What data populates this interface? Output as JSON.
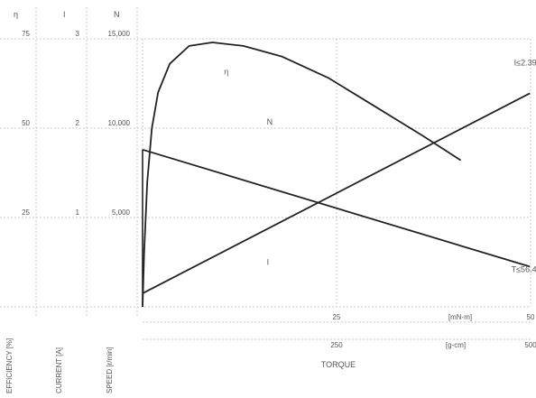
{
  "chart_data": {
    "type": "line",
    "xlabel": "TORQUE",
    "x_units": {
      "top": "[mN-m]",
      "bottom": "[g-cm]"
    },
    "x_ticks_top": [
      {
        "value": 0,
        "label": ""
      },
      {
        "value": 25,
        "label": "25"
      },
      {
        "value": 50,
        "label": "50"
      }
    ],
    "x_ticks_bottom": [
      {
        "value": 0,
        "label": ""
      },
      {
        "value": 25,
        "label": "250"
      },
      {
        "value": 50,
        "label": "500"
      }
    ],
    "xlim": [
      0,
      50
    ],
    "left_axes": [
      {
        "symbol": "η",
        "label": "EFFICIENCY [%]",
        "ticks": [
          "25",
          "50",
          "75"
        ]
      },
      {
        "symbol": "I",
        "label": "CURRENT [A]",
        "ticks": [
          "1",
          "2",
          "3"
        ]
      },
      {
        "symbol": "N",
        "label": "SPEED [r/min]",
        "ticks": [
          "5,000",
          "10,000",
          "15,000"
        ]
      }
    ],
    "ylim": [
      0,
      15000
    ],
    "grid": true,
    "series": [
      {
        "name": "η",
        "unit": "%",
        "stroke": "#222222",
        "points": [
          [
            0.0,
            0
          ],
          [
            0.2,
            15
          ],
          [
            0.6,
            35
          ],
          [
            1.2,
            50
          ],
          [
            2.0,
            60
          ],
          [
            3.5,
            68
          ],
          [
            6.0,
            73
          ],
          [
            9.0,
            74
          ],
          [
            13.0,
            73
          ],
          [
            18.0,
            70
          ],
          [
            24.0,
            64
          ],
          [
            30.0,
            56
          ],
          [
            36.0,
            48
          ],
          [
            41.0,
            41
          ]
        ]
      },
      {
        "name": "N",
        "unit": "r/min",
        "stroke": "#222222",
        "points": [
          [
            0,
            8800
          ],
          [
            49.9,
            2250
          ]
        ]
      },
      {
        "name": "I",
        "unit": "A",
        "stroke": "#222222",
        "points": [
          [
            0,
            0.15
          ],
          [
            49.9,
            2.39
          ]
        ]
      }
    ],
    "annotations": [
      {
        "text": "η",
        "x": 10.5,
        "y": 13000
      },
      {
        "text": "N",
        "x": 16,
        "y": 10200
      },
      {
        "text": "I",
        "x": 16,
        "y": 2350
      },
      {
        "text": "I≤2.39",
        "x": 51,
        "y": 13500
      },
      {
        "text": "T≤56.4",
        "x": 51,
        "y": 1950
      }
    ]
  }
}
